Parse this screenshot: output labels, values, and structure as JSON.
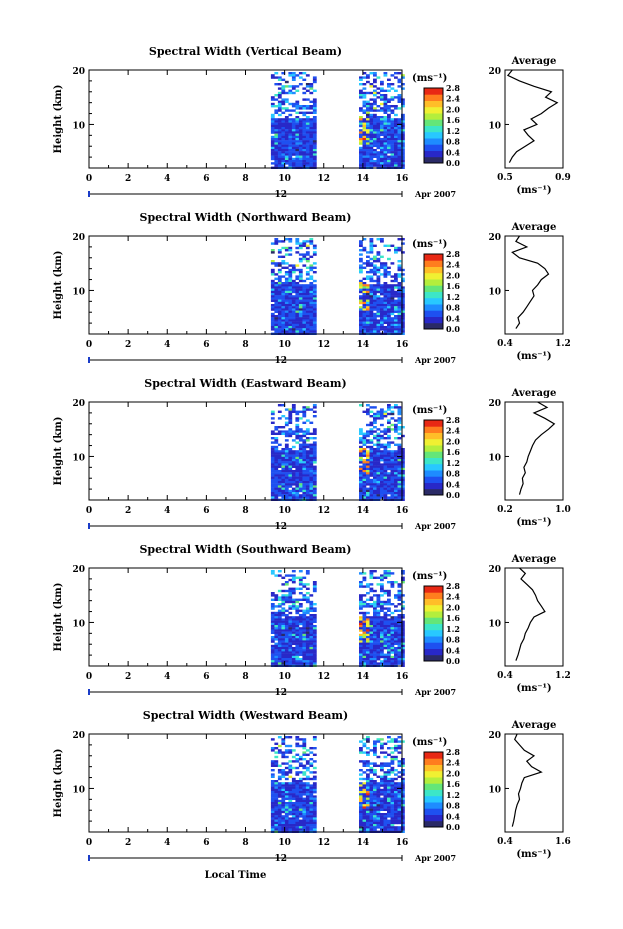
{
  "figure": {
    "xlabel": "Local Time",
    "date_label": "Apr 2007",
    "day_label": "12",
    "ylabel": "Height (km)",
    "unit_label": "(ms⁻¹)",
    "avg_title": "Average",
    "avg_xlabel": "(ms⁻¹)"
  },
  "chart_data": [
    {
      "type": "heatmap",
      "title": "Spectral Width (Vertical Beam)",
      "xlabel": "Local Time",
      "ylabel": "Height (km)",
      "xlim": [
        0,
        16
      ],
      "ylim": [
        2,
        20
      ],
      "x_ticks": [
        "0",
        "2",
        "4",
        "6",
        "8",
        "10",
        "12",
        "14",
        "16"
      ],
      "y_ticks": [
        "10",
        "20"
      ],
      "data_segments": [
        [
          9.3,
          11.6
        ],
        [
          13.8,
          16.0
        ]
      ],
      "colorbar": {
        "label": "(ms⁻¹)",
        "ticks": [
          "0.0",
          "0.4",
          "0.8",
          "1.2",
          "1.6",
          "2.0",
          "2.4",
          "2.8"
        ]
      },
      "profile": {
        "title": "Average",
        "xlabel": "(ms⁻¹)",
        "xlim": [
          0.5,
          0.9
        ],
        "x_ticks": [
          "0.5",
          "0.9"
        ],
        "heights": [
          3,
          4,
          5,
          6,
          7,
          8,
          9,
          10,
          11,
          12,
          13,
          14,
          15,
          16,
          17,
          18,
          19,
          20
        ],
        "values": [
          0.53,
          0.55,
          0.58,
          0.64,
          0.7,
          0.66,
          0.63,
          0.72,
          0.68,
          0.75,
          0.8,
          0.86,
          0.78,
          0.82,
          0.7,
          0.6,
          0.52,
          0.55
        ]
      }
    },
    {
      "type": "heatmap",
      "title": "Spectral Width (Northward Beam)",
      "xlabel": "Local Time",
      "ylabel": "Height (km)",
      "xlim": [
        0,
        16
      ],
      "ylim": [
        2,
        20
      ],
      "x_ticks": [
        "0",
        "2",
        "4",
        "6",
        "8",
        "10",
        "12",
        "14",
        "16"
      ],
      "y_ticks": [
        "10",
        "20"
      ],
      "data_segments": [
        [
          9.3,
          11.6
        ],
        [
          13.8,
          16.0
        ]
      ],
      "colorbar": {
        "label": "(ms⁻¹)",
        "ticks": [
          "0.0",
          "0.4",
          "0.8",
          "1.2",
          "1.6",
          "2.0",
          "2.4",
          "2.8"
        ]
      },
      "profile": {
        "title": "Average",
        "xlabel": "(ms⁻¹)",
        "xlim": [
          0.4,
          1.2
        ],
        "x_ticks": [
          "0.4",
          "1.2"
        ],
        "heights": [
          3,
          4,
          5,
          6,
          7,
          8,
          9,
          10,
          11,
          12,
          13,
          14,
          15,
          16,
          17,
          18,
          19,
          20
        ],
        "values": [
          0.55,
          0.6,
          0.58,
          0.65,
          0.7,
          0.75,
          0.8,
          0.78,
          0.85,
          0.9,
          1.0,
          0.95,
          0.85,
          0.6,
          0.5,
          0.7,
          0.55,
          0.6
        ]
      }
    },
    {
      "type": "heatmap",
      "title": "Spectral Width (Eastward Beam)",
      "xlabel": "Local Time",
      "ylabel": "Height (km)",
      "xlim": [
        0,
        16
      ],
      "ylim": [
        2,
        20
      ],
      "x_ticks": [
        "0",
        "2",
        "4",
        "6",
        "8",
        "10",
        "12",
        "14",
        "16"
      ],
      "y_ticks": [
        "10",
        "20"
      ],
      "data_segments": [
        [
          9.3,
          11.6
        ],
        [
          13.8,
          16.0
        ]
      ],
      "colorbar": {
        "label": "(ms⁻¹)",
        "ticks": [
          "0.0",
          "0.4",
          "0.8",
          "1.2",
          "1.6",
          "2.0",
          "2.4",
          "2.8"
        ]
      },
      "profile": {
        "title": "Average",
        "xlabel": "(ms⁻¹)",
        "xlim": [
          0.2,
          1.0
        ],
        "x_ticks": [
          "0.2",
          "1.0"
        ],
        "heights": [
          3,
          4,
          5,
          6,
          7,
          8,
          9,
          10,
          11,
          12,
          13,
          14,
          15,
          16,
          17,
          18,
          19,
          20
        ],
        "values": [
          0.4,
          0.42,
          0.45,
          0.44,
          0.48,
          0.46,
          0.5,
          0.52,
          0.55,
          0.58,
          0.62,
          0.7,
          0.8,
          0.88,
          0.75,
          0.6,
          0.78,
          0.65
        ]
      }
    },
    {
      "type": "heatmap",
      "title": "Spectral Width (Southward Beam)",
      "xlabel": "Local Time",
      "ylabel": "Height (km)",
      "xlim": [
        0,
        16
      ],
      "ylim": [
        2,
        20
      ],
      "x_ticks": [
        "0",
        "2",
        "4",
        "6",
        "8",
        "10",
        "12",
        "14",
        "16"
      ],
      "y_ticks": [
        "10",
        "20"
      ],
      "data_segments": [
        [
          9.3,
          11.6
        ],
        [
          13.8,
          16.0
        ]
      ],
      "colorbar": {
        "label": "(ms⁻¹)",
        "ticks": [
          "0.0",
          "0.4",
          "0.8",
          "1.2",
          "1.6",
          "2.0",
          "2.4",
          "2.8"
        ]
      },
      "profile": {
        "title": "Average",
        "xlabel": "(ms⁻¹)",
        "xlim": [
          0.4,
          1.2
        ],
        "x_ticks": [
          "0.4",
          "1.2"
        ],
        "heights": [
          3,
          4,
          5,
          6,
          7,
          8,
          9,
          10,
          11,
          12,
          13,
          14,
          15,
          16,
          17,
          18,
          19,
          20
        ],
        "values": [
          0.55,
          0.58,
          0.6,
          0.62,
          0.66,
          0.68,
          0.72,
          0.75,
          0.8,
          0.95,
          0.9,
          0.85,
          0.82,
          0.78,
          0.7,
          0.62,
          0.68,
          0.6
        ]
      }
    },
    {
      "type": "heatmap",
      "title": "Spectral Width (Westward Beam)",
      "xlabel": "Local Time",
      "ylabel": "Height (km)",
      "xlim": [
        0,
        16
      ],
      "ylim": [
        2,
        20
      ],
      "x_ticks": [
        "0",
        "2",
        "4",
        "6",
        "8",
        "10",
        "12",
        "14",
        "16"
      ],
      "y_ticks": [
        "10",
        "20"
      ],
      "data_segments": [
        [
          9.3,
          11.6
        ],
        [
          13.8,
          16.0
        ]
      ],
      "colorbar": {
        "label": "(ms⁻¹)",
        "ticks": [
          "0.0",
          "0.4",
          "0.8",
          "1.2",
          "1.6",
          "2.0",
          "2.4",
          "2.8"
        ]
      },
      "profile": {
        "title": "Average",
        "xlabel": "(ms⁻¹)",
        "xlim": [
          0.4,
          1.6
        ],
        "x_ticks": [
          "0.4",
          "1.6"
        ],
        "heights": [
          3,
          4,
          5,
          6,
          7,
          8,
          9,
          10,
          11,
          12,
          13,
          14,
          15,
          16,
          17,
          18,
          19,
          20
        ],
        "values": [
          0.55,
          0.58,
          0.6,
          0.62,
          0.65,
          0.7,
          0.68,
          0.72,
          0.75,
          0.8,
          1.15,
          0.95,
          0.85,
          1.0,
          0.8,
          0.7,
          0.6,
          0.65
        ]
      }
    }
  ]
}
